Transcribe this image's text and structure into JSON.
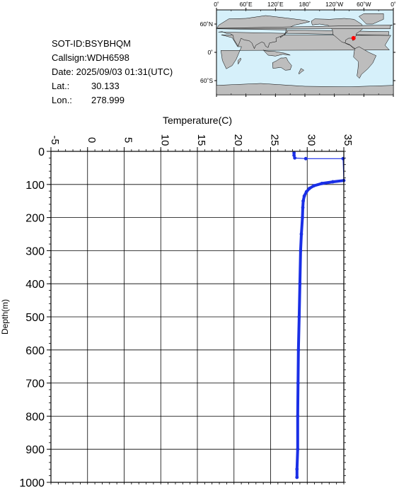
{
  "info": {
    "sot_id": "SOT-ID:BSYBHQM",
    "callsign": "Callsign:WDH6598",
    "date": "Date:  2025/09/03 01:31(UTC)",
    "lat_label": "Lat.:",
    "lat_value": "30.133",
    "lon_label": "Lon.:",
    "lon_value": "278.999"
  },
  "map": {
    "lon_ticks": [
      "0˚",
      "60˚E",
      "120˚E",
      "180˚",
      "120˚W",
      "60˚W",
      "0˚"
    ],
    "lat_ticks": [
      "60˚N",
      "0˚",
      "60˚S"
    ],
    "marker_lon": 278.999,
    "marker_lat": 30.133,
    "ocean_color": "#d6f0fa",
    "land_color": "#bdbdbd",
    "marker_color": "#ff0000"
  },
  "chart_data": {
    "type": "line",
    "xlabel": "Temperature(C)",
    "ylabel": "Depth(m)",
    "xlim": [
      -5,
      35
    ],
    "ylim": [
      1000,
      0
    ],
    "x_ticks": [
      "-5",
      "0",
      "5",
      "10",
      "15",
      "20",
      "25",
      "30",
      "35"
    ],
    "y_ticks": [
      "0",
      "100",
      "200",
      "300",
      "400",
      "500",
      "600",
      "700",
      "800",
      "900",
      "1000"
    ],
    "grid": true,
    "line_color": "#1a2fe6",
    "series": [
      {
        "points": [
          [
            28.2,
            5
          ],
          [
            28.2,
            12
          ],
          [
            28.3,
            20
          ],
          [
            29.8,
            22
          ],
          [
            34.9,
            22
          ],
          [
            35.0,
            88
          ],
          [
            33.5,
            92
          ],
          [
            32.0,
            97
          ],
          [
            30.9,
            104
          ],
          [
            30.3,
            112
          ],
          [
            29.9,
            122
          ],
          [
            29.6,
            135
          ],
          [
            29.45,
            150
          ],
          [
            29.4,
            170
          ],
          [
            29.35,
            200
          ],
          [
            29.2,
            250
          ],
          [
            29.1,
            300
          ],
          [
            29.0,
            400
          ],
          [
            28.9,
            500
          ],
          [
            28.8,
            600
          ],
          [
            28.75,
            700
          ],
          [
            28.7,
            800
          ],
          [
            28.7,
            900
          ],
          [
            28.6,
            960
          ],
          [
            28.6,
            985
          ]
        ]
      }
    ]
  }
}
